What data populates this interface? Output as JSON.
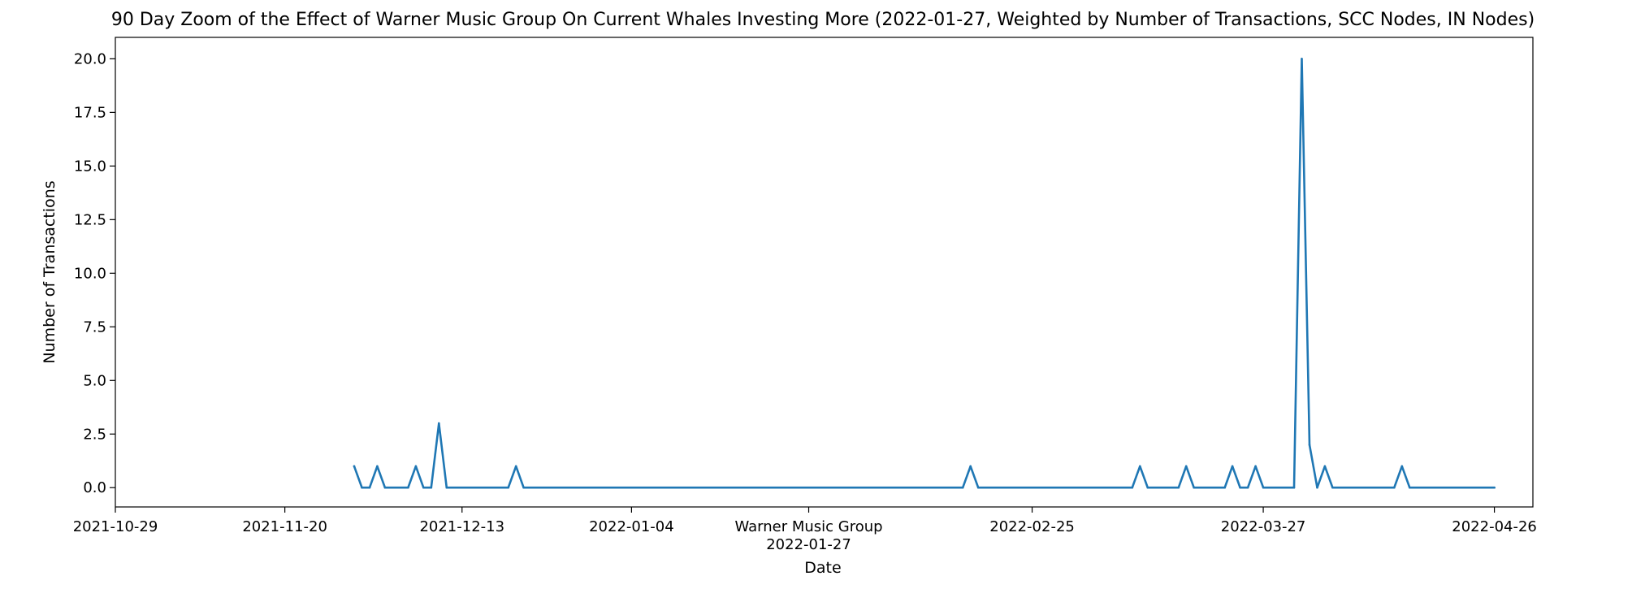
{
  "chart_data": {
    "type": "line",
    "title": "90 Day Zoom of the Effect of Warner Music Group On Current Whales Investing More (2022-01-27, Weighted by Number of Transactions, SCC Nodes, IN Nodes)",
    "xlabel": "Date",
    "ylabel": "Number of Transactions",
    "xlim": [
      "2021-10-29",
      "2022-05-01"
    ],
    "ylim": [
      -0.9,
      21
    ],
    "grid": false,
    "line_color": "#1f77b4",
    "x_ticks": [
      {
        "date": "2021-10-29",
        "label": "2021-10-29"
      },
      {
        "date": "2021-11-20",
        "label": "2021-11-20"
      },
      {
        "date": "2021-12-13",
        "label": "2021-12-13"
      },
      {
        "date": "2022-01-04",
        "label": "2022-01-04"
      },
      {
        "date": "2022-01-27",
        "label": "Warner Music Group",
        "label2": "2022-01-27"
      },
      {
        "date": "2022-02-25",
        "label": "2022-02-25"
      },
      {
        "date": "2022-03-27",
        "label": "2022-03-27"
      },
      {
        "date": "2022-04-26",
        "label": "2022-04-26"
      }
    ],
    "y_ticks": [
      {
        "value": 0,
        "label": "0.0"
      },
      {
        "value": 2.5,
        "label": "2.5"
      },
      {
        "value": 5,
        "label": "5.0"
      },
      {
        "value": 7.5,
        "label": "7.5"
      },
      {
        "value": 10,
        "label": "10.0"
      },
      {
        "value": 12.5,
        "label": "12.5"
      },
      {
        "value": 15,
        "label": "15.0"
      },
      {
        "value": 17.5,
        "label": "17.5"
      },
      {
        "value": 20,
        "label": "20.0"
      }
    ],
    "series": [
      {
        "points": [
          {
            "x": "2021-11-29",
            "y": 1
          },
          {
            "x": "2021-11-30",
            "y": 0
          },
          {
            "x": "2021-12-01",
            "y": 0
          },
          {
            "x": "2021-12-02",
            "y": 1
          },
          {
            "x": "2021-12-03",
            "y": 0
          },
          {
            "x": "2021-12-06",
            "y": 0
          },
          {
            "x": "2021-12-07",
            "y": 1
          },
          {
            "x": "2021-12-08",
            "y": 0
          },
          {
            "x": "2021-12-09",
            "y": 0
          },
          {
            "x": "2021-12-10",
            "y": 3
          },
          {
            "x": "2021-12-11",
            "y": 0
          },
          {
            "x": "2021-12-19",
            "y": 0
          },
          {
            "x": "2021-12-20",
            "y": 1
          },
          {
            "x": "2021-12-21",
            "y": 0
          },
          {
            "x": "2022-02-16",
            "y": 0
          },
          {
            "x": "2022-02-17",
            "y": 1
          },
          {
            "x": "2022-02-18",
            "y": 0
          },
          {
            "x": "2022-03-10",
            "y": 0
          },
          {
            "x": "2022-03-11",
            "y": 1
          },
          {
            "x": "2022-03-12",
            "y": 0
          },
          {
            "x": "2022-03-16",
            "y": 0
          },
          {
            "x": "2022-03-17",
            "y": 1
          },
          {
            "x": "2022-03-18",
            "y": 0
          },
          {
            "x": "2022-03-22",
            "y": 0
          },
          {
            "x": "2022-03-23",
            "y": 1
          },
          {
            "x": "2022-03-24",
            "y": 0
          },
          {
            "x": "2022-03-25",
            "y": 0
          },
          {
            "x": "2022-03-26",
            "y": 1
          },
          {
            "x": "2022-03-27",
            "y": 0
          },
          {
            "x": "2022-03-31",
            "y": 0
          },
          {
            "x": "2022-04-01",
            "y": 20
          },
          {
            "x": "2022-04-02",
            "y": 2
          },
          {
            "x": "2022-04-03",
            "y": 0
          },
          {
            "x": "2022-04-04",
            "y": 1
          },
          {
            "x": "2022-04-05",
            "y": 0
          },
          {
            "x": "2022-04-13",
            "y": 0
          },
          {
            "x": "2022-04-14",
            "y": 1
          },
          {
            "x": "2022-04-15",
            "y": 0
          },
          {
            "x": "2022-04-26",
            "y": 0
          }
        ]
      }
    ]
  }
}
